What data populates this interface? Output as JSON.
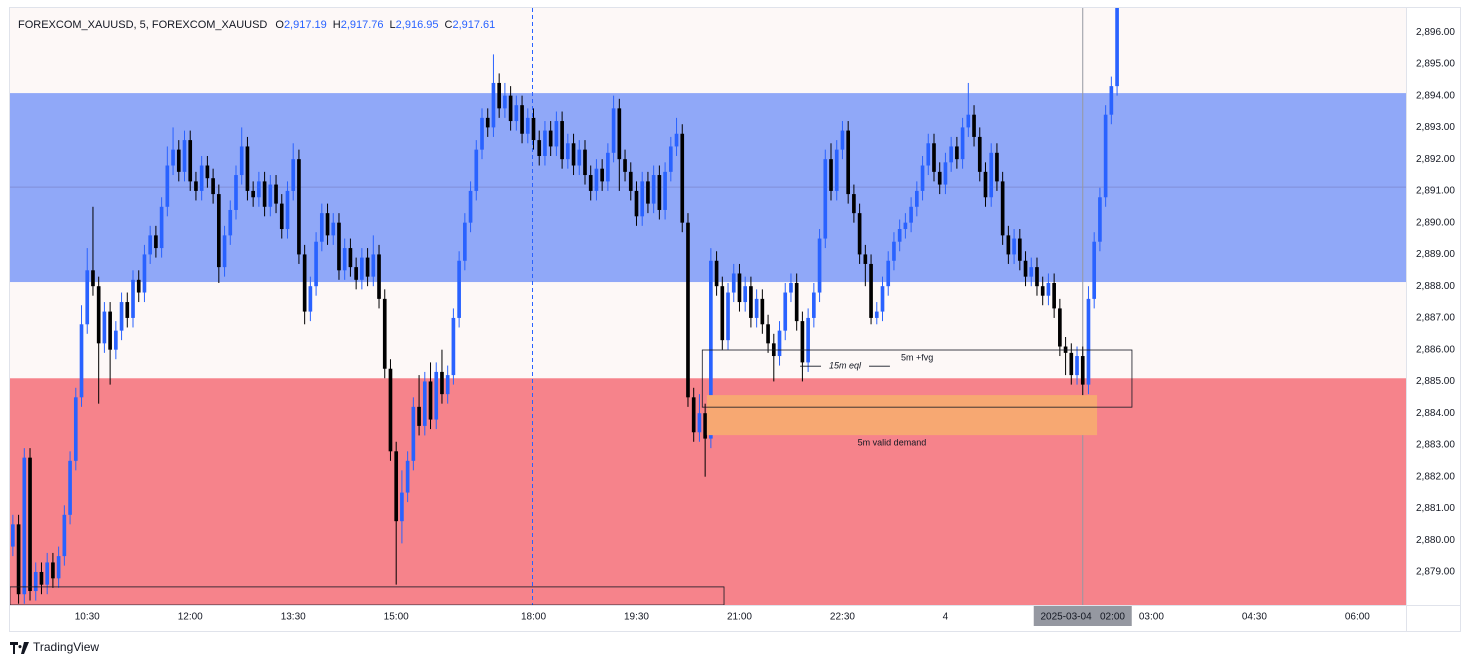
{
  "chart_data": {
    "type": "candlestick",
    "symbol": "FOREXCOM_XAUUSD, 5, FOREXCOM_XAUUSD",
    "ohlc_legend": [
      {
        "label": "O",
        "value": "2,917.19"
      },
      {
        "label": "H",
        "value": "2,917.76"
      },
      {
        "label": "L",
        "value": "2,916.95"
      },
      {
        "label": "C",
        "value": "2,917.61"
      }
    ],
    "up_color": "#2962ff",
    "down_color": "#000000",
    "xlim": [
      0,
      244
    ],
    "ylim": [
      2877.96,
      2896.76
    ],
    "xticks": [
      {
        "value": 13.5,
        "label": "10:30"
      },
      {
        "value": 31.5,
        "label": "12:00"
      },
      {
        "value": 49.5,
        "label": "13:30"
      },
      {
        "value": 67.5,
        "label": "15:00"
      },
      {
        "value": 91.5,
        "label": "18:00"
      },
      {
        "value": 109.5,
        "label": "19:30"
      },
      {
        "value": 127.5,
        "label": "21:00"
      },
      {
        "value": 145.5,
        "label": "22:30"
      },
      {
        "value": 163.5,
        "label": "4"
      },
      {
        "value": 199.5,
        "label": "03:00"
      },
      {
        "value": 217.5,
        "label": "04:30"
      },
      {
        "value": 235.5,
        "label": "06:00"
      }
    ],
    "yticks": [
      {
        "value": 2879,
        "label": "2,879.00"
      },
      {
        "value": 2880,
        "label": "2,880.00"
      },
      {
        "value": 2881,
        "label": "2,881.00"
      },
      {
        "value": 2882,
        "label": "2,882.00"
      },
      {
        "value": 2883,
        "label": "2,883.00"
      },
      {
        "value": 2884,
        "label": "2,884.00"
      },
      {
        "value": 2885,
        "label": "2,885.00"
      },
      {
        "value": 2886,
        "label": "2,886.00"
      },
      {
        "value": 2887,
        "label": "2,887.00"
      },
      {
        "value": 2888,
        "label": "2,888.00"
      },
      {
        "value": 2889,
        "label": "2,889.00"
      },
      {
        "value": 2890,
        "label": "2,890.00"
      },
      {
        "value": 2891,
        "label": "2,891.00"
      },
      {
        "value": 2892,
        "label": "2,892.00"
      },
      {
        "value": 2893,
        "label": "2,893.00"
      },
      {
        "value": 2894,
        "label": "2,894.00"
      },
      {
        "value": 2895,
        "label": "2,895.00"
      },
      {
        "value": 2896,
        "label": "2,896.00"
      }
    ],
    "crosshair": {
      "x": 187.5,
      "label": "2025-03-04   02:00"
    },
    "zones": [
      {
        "from": 2888.13,
        "to": 2894.08,
        "color": "#90a8f8"
      },
      {
        "from": 2877.96,
        "to": 2885.1,
        "color": "#f6838b"
      }
    ],
    "midline": 2891.12,
    "boxes": [
      {
        "label": "5m valid demand",
        "x": [
          121.8,
          190.0
        ],
        "y": [
          2883.31,
          2884.57
        ],
        "fill": "#f7a872"
      },
      {
        "label": "5m +fvg",
        "x": [
          121.0,
          196.1
        ],
        "y": [
          2884.19,
          2885.99
        ],
        "fill": "none"
      },
      {
        "x": [
          0,
          124.8
        ],
        "y": [
          2877.96,
          2878.53
        ],
        "fill": "none"
      }
    ],
    "eql": {
      "label": "15m eql",
      "y": 2885.48,
      "x": [
        138.1,
        153.8
      ]
    },
    "open": [
      2879.8,
      2880.5,
      2878.3,
      2882.6,
      2878.4,
      2879.0,
      2878.6,
      2879.3,
      2878.8,
      2879.5,
      2880.8,
      2882.5,
      2884.5,
      2886.8,
      2888.5,
      2888.0,
      2886.2,
      2887.2,
      2886.0,
      2886.6,
      2887.5,
      2887.0,
      2888.2,
      2887.8,
      2889.0,
      2889.6,
      2889.2,
      2890.5,
      2891.8,
      2892.3,
      2891.6,
      2892.6,
      2891.3,
      2891.0,
      2891.8,
      2891.4,
      2890.9,
      2888.6,
      2889.6,
      2890.4,
      2891.5,
      2892.4,
      2891.0,
      2890.8,
      2891.3,
      2890.5,
      2891.2,
      2890.6,
      2889.8,
      2891.0,
      2892.0,
      2889.0,
      2887.2,
      2888.0,
      2889.4,
      2890.3,
      2889.6,
      2890.0,
      2888.5,
      2889.2,
      2888.6,
      2888.2,
      2888.9,
      2888.3,
      2889.0,
      2887.6,
      2885.4,
      2882.8,
      2880.6,
      2881.5,
      2882.5,
      2884.2,
      2883.6,
      2885.0,
      2883.8,
      2885.3,
      2884.6,
      2885.2,
      2887.0,
      2888.8,
      2890.0,
      2891.0,
      2892.3,
      2893.3,
      2893.0,
      2894.4,
      2893.6,
      2894.0,
      2893.2,
      2893.7,
      2892.8,
      2893.3,
      2892.6,
      2892.1,
      2892.9,
      2892.4,
      2893.2,
      2892.0,
      2892.5,
      2891.8,
      2892.3,
      2891.5,
      2891.0,
      2891.7,
      2891.3,
      2892.2,
      2893.6,
      2892.0,
      2891.6,
      2891.0,
      2890.2,
      2891.3,
      2890.6,
      2891.5,
      2890.4,
      2891.6,
      2892.4,
      2892.8,
      2890.0,
      2884.5,
      2883.4,
      2884.0,
      2883.2,
      2888.8,
      2888.0,
      2886.3,
      2887.8,
      2888.4,
      2887.5,
      2888.0,
      2887.0,
      2887.6,
      2886.8,
      2886.2,
      2885.8,
      2886.6,
      2887.8,
      2888.1,
      2886.9,
      2885.6,
      2887.0,
      2887.8,
      2889.5,
      2892.0,
      2891.0,
      2892.3,
      2892.9,
      2890.9,
      2890.3,
      2889.0,
      2888.7,
      2887.0,
      2887.2,
      2888.0,
      2888.8,
      2889.4,
      2889.8,
      2890.0,
      2890.5,
      2891.0,
      2891.8,
      2892.5,
      2891.6,
      2891.2,
      2891.9,
      2892.4,
      2892.0,
      2893.0,
      2893.4,
      2892.7,
      2891.6,
      2890.8,
      2892.2,
      2891.3,
      2889.6,
      2889.0,
      2889.5,
      2888.8,
      2888.3,
      2888.6,
      2888.0,
      2887.7,
      2888.1,
      2887.3,
      2886.1,
      2885.9,
      2885.2,
      2885.8,
      2884.9,
      2887.6,
      2889.4,
      2890.8,
      2893.4,
      2894.3
    ],
    "high": [
      2880.8,
      2880.8,
      2882.9,
      2882.9,
      2879.3,
      2879.3,
      2879.6,
      2879.6,
      2879.8,
      2881.1,
      2882.8,
      2884.8,
      2887.4,
      2889.2,
      2890.5,
      2888.3,
      2887.5,
      2887.5,
      2886.9,
      2887.8,
      2887.8,
      2888.5,
      2888.5,
      2889.3,
      2889.9,
      2889.9,
      2890.8,
      2892.4,
      2893.0,
      2892.6,
      2892.9,
      2892.9,
      2891.6,
      2892.1,
      2892.1,
      2891.7,
      2891.2,
      2889.9,
      2890.7,
      2891.8,
      2893.0,
      2892.7,
      2891.3,
      2891.6,
      2891.6,
      2891.5,
      2891.5,
      2890.9,
      2891.3,
      2892.5,
      2892.3,
      2889.3,
      2888.3,
      2889.7,
      2890.6,
      2890.6,
      2890.3,
      2890.3,
      2889.5,
      2889.5,
      2888.9,
      2889.2,
      2889.2,
      2889.6,
      2889.3,
      2887.9,
      2885.7,
      2883.1,
      2882.2,
      2882.8,
      2884.5,
      2885.2,
      2885.3,
      2885.6,
      2885.6,
      2886.0,
      2885.5,
      2887.3,
      2889.1,
      2890.3,
      2891.3,
      2892.6,
      2893.6,
      2893.6,
      2895.3,
      2894.7,
      2894.4,
      2894.3,
      2894.0,
      2894.0,
      2893.6,
      2893.6,
      2892.9,
      2893.2,
      2893.2,
      2893.5,
      2893.5,
      2892.8,
      2892.8,
      2892.6,
      2892.6,
      2891.8,
      2892.0,
      2892.0,
      2892.5,
      2894.0,
      2893.9,
      2892.3,
      2891.9,
      2891.3,
      2891.6,
      2891.6,
      2891.8,
      2891.8,
      2891.9,
      2892.7,
      2893.3,
      2893.1,
      2890.3,
      2884.8,
      2884.6,
      2884.3,
      2889.2,
      2889.1,
      2888.3,
      2888.1,
      2888.7,
      2888.7,
      2888.3,
      2888.3,
      2887.9,
      2887.9,
      2887.1,
      2886.5,
      2886.9,
      2888.1,
      2888.4,
      2888.4,
      2887.2,
      2887.3,
      2888.1,
      2889.8,
      2892.3,
      2892.5,
      2892.6,
      2893.2,
      2893.2,
      2891.2,
      2890.6,
      2889.3,
      2889.0,
      2887.5,
      2888.3,
      2889.1,
      2889.7,
      2890.1,
      2890.3,
      2890.8,
      2891.3,
      2892.1,
      2892.8,
      2892.8,
      2891.9,
      2892.2,
      2892.7,
      2892.7,
      2893.3,
      2894.4,
      2893.7,
      2893.0,
      2891.9,
      2892.5,
      2892.5,
      2891.6,
      2889.9,
      2889.8,
      2889.8,
      2889.1,
      2888.9,
      2888.9,
      2888.3,
      2888.4,
      2888.4,
      2887.6,
      2886.4,
      2886.2,
      2886.1,
      2886.1,
      2888.0,
      2889.7,
      2891.1,
      2893.7,
      2894.6,
      2897.5
    ],
    "low": [
      2879.5,
      2878.0,
      2878.0,
      2878.1,
      2878.1,
      2878.3,
      2878.3,
      2878.5,
      2878.5,
      2879.2,
      2880.5,
      2882.2,
      2884.2,
      2886.5,
      2887.7,
      2884.3,
      2885.9,
      2884.9,
      2885.7,
      2886.3,
      2886.7,
      2886.7,
      2887.5,
      2887.5,
      2888.7,
      2888.9,
      2888.9,
      2890.2,
      2891.5,
      2891.3,
      2891.3,
      2891.0,
      2890.7,
      2890.7,
      2891.1,
      2890.6,
      2888.1,
      2888.3,
      2889.3,
      2890.1,
      2891.2,
      2890.7,
      2890.5,
      2890.5,
      2890.2,
      2890.2,
      2890.3,
      2889.5,
      2889.5,
      2890.7,
      2888.7,
      2886.8,
      2886.9,
      2887.7,
      2889.1,
      2889.3,
      2889.3,
      2888.2,
      2888.2,
      2888.3,
      2887.9,
      2887.9,
      2888.0,
      2888.0,
      2887.3,
      2885.1,
      2882.5,
      2878.6,
      2879.9,
      2881.2,
      2882.2,
      2883.3,
      2883.3,
      2883.5,
      2883.5,
      2884.3,
      2884.3,
      2884.9,
      2886.7,
      2888.5,
      2889.7,
      2890.7,
      2892.0,
      2892.7,
      2892.7,
      2893.3,
      2893.3,
      2892.9,
      2892.9,
      2892.5,
      2892.5,
      2892.3,
      2891.8,
      2891.8,
      2892.1,
      2892.1,
      2891.7,
      2891.7,
      2891.5,
      2891.5,
      2891.2,
      2890.7,
      2890.7,
      2891.0,
      2891.0,
      2891.9,
      2891.0,
      2891.3,
      2890.7,
      2889.9,
      2889.9,
      2890.3,
      2890.3,
      2890.1,
      2890.1,
      2891.3,
      2892.1,
      2889.7,
      2884.2,
      2883.1,
      2883.1,
      2882.0,
      2882.9,
      2887.7,
      2886.0,
      2886.0,
      2887.5,
      2887.2,
      2887.2,
      2886.7,
      2886.7,
      2886.5,
      2885.9,
      2885.0,
      2885.5,
      2886.3,
      2887.5,
      2886.6,
      2885.0,
      2885.3,
      2886.7,
      2887.5,
      2889.2,
      2890.7,
      2890.7,
      2892.0,
      2890.6,
      2890.0,
      2888.7,
      2888.0,
      2886.8,
      2886.8,
      2886.9,
      2887.7,
      2888.5,
      2889.1,
      2889.5,
      2889.7,
      2890.2,
      2890.7,
      2891.5,
      2891.3,
      2890.9,
      2890.9,
      2891.6,
      2891.7,
      2891.7,
      2892.7,
      2892.4,
      2891.3,
      2890.5,
      2890.5,
      2891.0,
      2889.3,
      2888.7,
      2888.7,
      2888.5,
      2888.0,
      2888.0,
      2887.7,
      2887.4,
      2887.4,
      2887.0,
      2885.8,
      2885.2,
      2884.9,
      2884.9,
      2884.5,
      2884.6,
      2887.3,
      2889.1,
      2890.5,
      2893.1,
      2894.0
    ],
    "close": [
      2880.5,
      2878.3,
      2882.6,
      2878.4,
      2879.0,
      2878.6,
      2879.3,
      2878.8,
      2879.5,
      2880.8,
      2882.5,
      2884.5,
      2886.8,
      2888.5,
      2888.0,
      2886.2,
      2887.2,
      2886.0,
      2886.6,
      2887.5,
      2887.0,
      2888.2,
      2887.8,
      2889.0,
      2889.6,
      2889.2,
      2890.5,
      2891.8,
      2892.3,
      2891.6,
      2892.6,
      2891.3,
      2891.0,
      2891.8,
      2891.4,
      2890.9,
      2888.6,
      2889.6,
      2890.4,
      2891.5,
      2892.4,
      2891.0,
      2890.8,
      2891.3,
      2890.5,
      2891.2,
      2890.6,
      2889.8,
      2891.0,
      2892.0,
      2889.0,
      2887.2,
      2888.0,
      2889.4,
      2890.3,
      2889.6,
      2890.0,
      2888.5,
      2889.2,
      2888.6,
      2888.2,
      2888.9,
      2888.3,
      2889.0,
      2887.6,
      2885.4,
      2882.8,
      2880.6,
      2881.5,
      2882.5,
      2884.2,
      2883.6,
      2885.0,
      2883.8,
      2885.3,
      2884.6,
      2885.2,
      2887.0,
      2888.8,
      2890.0,
      2891.0,
      2892.3,
      2893.3,
      2893.0,
      2894.4,
      2893.6,
      2894.0,
      2893.2,
      2893.7,
      2892.8,
      2893.3,
      2892.6,
      2892.1,
      2892.9,
      2892.4,
      2893.2,
      2892.0,
      2892.5,
      2891.8,
      2892.3,
      2891.5,
      2891.0,
      2891.7,
      2891.3,
      2892.2,
      2893.6,
      2892.0,
      2891.6,
      2891.0,
      2890.2,
      2891.3,
      2890.6,
      2891.5,
      2890.4,
      2891.6,
      2892.4,
      2892.8,
      2890.0,
      2884.5,
      2883.4,
      2884.0,
      2883.2,
      2888.8,
      2888.0,
      2886.3,
      2887.8,
      2888.4,
      2887.5,
      2888.0,
      2887.0,
      2887.6,
      2886.8,
      2886.2,
      2885.8,
      2886.6,
      2887.8,
      2888.1,
      2886.9,
      2885.6,
      2887.0,
      2887.8,
      2889.5,
      2892.0,
      2891.0,
      2892.3,
      2892.9,
      2890.9,
      2890.3,
      2889.0,
      2888.7,
      2887.0,
      2887.2,
      2888.0,
      2888.8,
      2889.4,
      2889.8,
      2890.0,
      2890.5,
      2891.0,
      2891.8,
      2892.5,
      2891.6,
      2891.2,
      2891.9,
      2892.4,
      2892.0,
      2893.0,
      2893.4,
      2892.7,
      2891.6,
      2890.8,
      2892.2,
      2891.3,
      2889.6,
      2889.0,
      2889.5,
      2888.8,
      2888.3,
      2888.6,
      2888.0,
      2887.7,
      2888.1,
      2887.3,
      2886.1,
      2885.9,
      2885.2,
      2885.8,
      2884.9,
      2887.6,
      2889.4,
      2890.8,
      2893.4,
      2894.3,
      2896.8
    ]
  },
  "footer": {
    "brand": "TradingView"
  }
}
